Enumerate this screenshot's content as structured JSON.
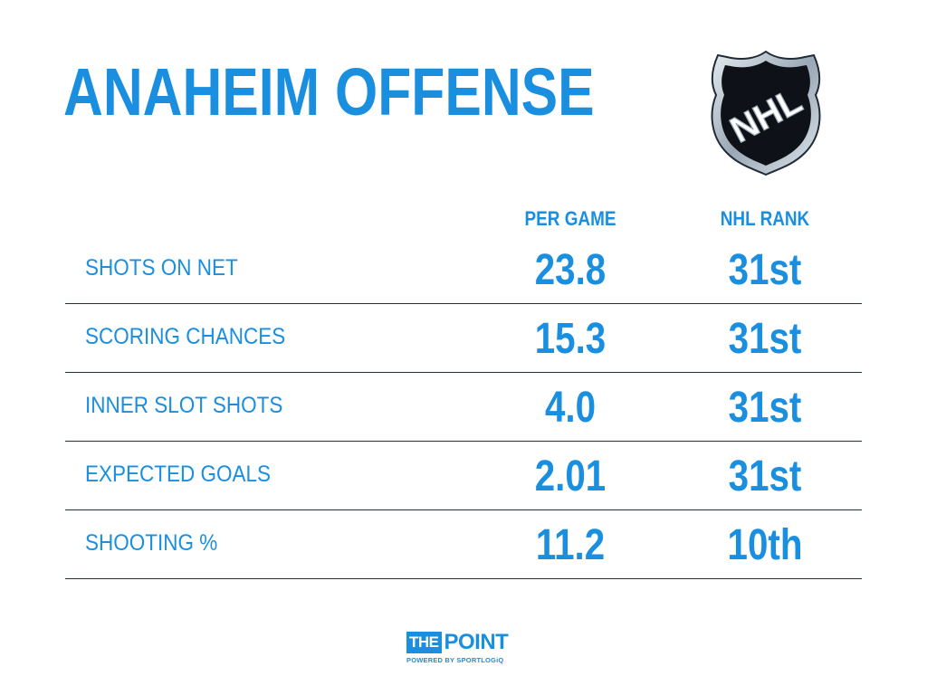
{
  "title": "ANAHEIM OFFENSE",
  "logo": {
    "icon": "nhl-shield-logo",
    "text": "NHL"
  },
  "columns": {
    "per_game": "PER GAME",
    "nhl_rank": "NHL RANK"
  },
  "rows": [
    {
      "label": "SHOTS ON NET",
      "per_game": "23.8",
      "rank": "31st"
    },
    {
      "label": "SCORING CHANCES",
      "per_game": "15.3",
      "rank": "31st"
    },
    {
      "label": "INNER SLOT SHOTS",
      "per_game": "4.0",
      "rank": "31st"
    },
    {
      "label": "EXPECTED GOALS",
      "per_game": "2.01",
      "rank": "31st"
    },
    {
      "label": "SHOOTING %",
      "per_game": "11.2",
      "rank": "10th"
    }
  ],
  "branding": {
    "the": "THE",
    "point": "POINT",
    "powered_by": "POWERED BY SPORTLOGiQ"
  },
  "colors": {
    "accent": "#1a8fe0",
    "divider": "#1f3042",
    "background": "#ffffff"
  }
}
